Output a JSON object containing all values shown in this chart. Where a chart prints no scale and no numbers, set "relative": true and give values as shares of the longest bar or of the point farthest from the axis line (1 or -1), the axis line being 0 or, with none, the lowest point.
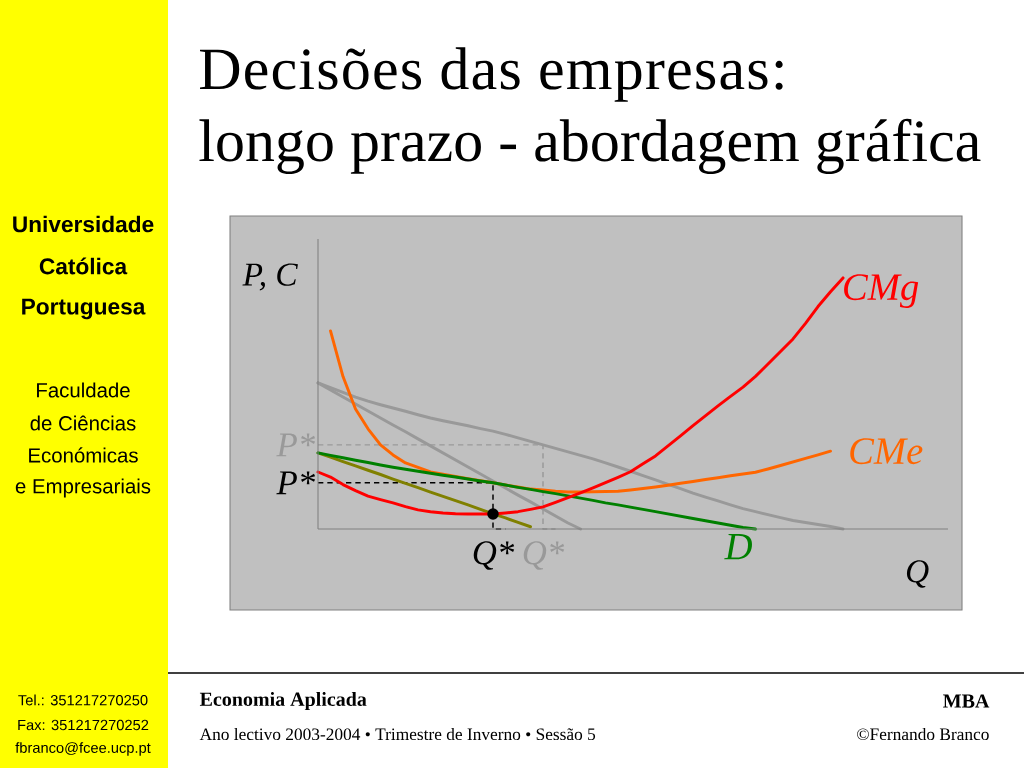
{
  "chart_data": {
    "type": "line",
    "title": "Decisões das empresas:",
    "subtitle": "longo prazo - abordagem gráfica",
    "xlabel": "Q",
    "ylabel": "P, C",
    "relative": true,
    "categories": [
      null,
      null,
      null,
      null,
      null,
      null,
      null,
      null,
      null,
      null,
      null,
      null,
      null,
      null,
      "Q*",
      null,
      null,
      null,
      "Q*",
      null,
      null,
      null,
      null,
      null,
      null,
      null,
      null,
      null,
      null,
      null,
      null,
      null,
      null,
      null,
      null,
      null,
      null,
      null,
      null,
      null,
      null,
      null,
      null
    ],
    "series": [
      {
        "color": "#999999",
        "values": [
          0.582,
          0.563,
          0.544,
          0.525,
          0.509,
          0.495,
          0.482,
          0.469,
          0.455,
          0.442,
          0.431,
          0.421,
          0.411,
          0.4,
          0.39,
          0.377,
          0.363,
          0.349,
          0.335,
          0.321,
          0.307,
          0.293,
          0.279,
          0.263,
          0.247,
          0.23,
          0.213,
          0.196,
          0.178,
          0.161,
          0.143,
          0.127,
          0.112,
          0.096,
          0.081,
          0.069,
          0.057,
          0.045,
          0.034,
          0.026,
          0.018,
          0.01,
          0
        ]
      },
      {
        "color": "#999999",
        "values": [
          0.582,
          0.554,
          0.526,
          0.498,
          0.47,
          0.442,
          0.414,
          0.387,
          0.359,
          0.331,
          0.303,
          0.275,
          0.247,
          0.219,
          0.191,
          0.163,
          0.135,
          0.108,
          0.08,
          0.052,
          0.024,
          0,
          null,
          null,
          null,
          null,
          null,
          null,
          null,
          null,
          null,
          null,
          null,
          null,
          null,
          null,
          null,
          null,
          null,
          null,
          null,
          null,
          null
        ]
      },
      {
        "type": "step",
        "name": "P*",
        "color": "#999999",
        "line_style": "dashed",
        "values": [
          0.335,
          0.335,
          0.335,
          0.335,
          0.335,
          0.335,
          0.335,
          0.335,
          0.335,
          0.335,
          0.335,
          0.335,
          0.335,
          0.335,
          0.335,
          0.335,
          0.335,
          0.335,
          0.335,
          0,
          null,
          null,
          null,
          null,
          null,
          null,
          null,
          null,
          null,
          null,
          null,
          null,
          null,
          null,
          null,
          null,
          null,
          null,
          null,
          null,
          null,
          null,
          null
        ]
      },
      {
        "type": "step",
        "name": "P*",
        "color": "#000000",
        "line_style": "dashed",
        "values": [
          0.184,
          0.184,
          0.184,
          0.184,
          0.184,
          0.184,
          0.184,
          0.184,
          0.184,
          0.184,
          0.184,
          0.184,
          0.184,
          0.184,
          0.184,
          0,
          null,
          null,
          null,
          null,
          null,
          null,
          null,
          null,
          null,
          null,
          null,
          null,
          null,
          null,
          null,
          null,
          null,
          null,
          null,
          null,
          null,
          null,
          null,
          null,
          null,
          null,
          null
        ]
      },
      {
        "name": "CMe",
        "color": "#ff6600",
        "values": [
          null,
          0.789,
          0.607,
          0.478,
          0.399,
          0.335,
          0.295,
          0.263,
          0.245,
          0.227,
          0.218,
          0.209,
          0.2,
          0.192,
          0.184,
          0.175,
          0.167,
          0.159,
          0.155,
          0.15,
          0.147,
          0.147,
          0.148,
          0.149,
          0.15,
          0.155,
          0.161,
          0.167,
          0.174,
          0.182,
          0.189,
          0.197,
          0.204,
          0.212,
          0.219,
          0.226,
          0.239,
          0.253,
          0.267,
          0.281,
          0.295,
          0.31,
          null
        ]
      },
      {
        "color": "#808000",
        "values": [
          0.303,
          0.286,
          0.268,
          0.251,
          0.234,
          0.217,
          0.199,
          0.182,
          0.165,
          0.147,
          0.13,
          0.113,
          0.096,
          0.078,
          0.06,
          0.044,
          0.026,
          0.009,
          null,
          null,
          null,
          null,
          null,
          null,
          null,
          null,
          null,
          null,
          null,
          null,
          null,
          null,
          null,
          null,
          null,
          null,
          null,
          null,
          null,
          null,
          null,
          null,
          null
        ]
      },
      {
        "name": "D",
        "color": "#008000",
        "values": [
          0.303,
          0.293,
          0.284,
          0.274,
          0.265,
          0.255,
          0.246,
          0.238,
          0.23,
          0.222,
          0.214,
          0.207,
          0.199,
          0.191,
          0.184,
          0.175,
          0.166,
          0.158,
          0.149,
          0.141,
          0.132,
          0.123,
          0.114,
          0.104,
          0.096,
          0.087,
          0.078,
          0.069,
          0.06,
          0.051,
          0.042,
          0.033,
          0.024,
          0.015,
          0.006,
          0,
          null,
          null,
          null,
          null,
          null,
          null,
          null
        ]
      },
      {
        "name": "CMg",
        "color": "#ff0000",
        "values": [
          0.227,
          0.207,
          0.177,
          0.153,
          0.131,
          0.117,
          0.104,
          0.089,
          0.076,
          0.069,
          0.064,
          0.061,
          0.06,
          0.06,
          0.06,
          0.064,
          0.069,
          0.078,
          0.088,
          0.106,
          0.125,
          0.144,
          0.164,
          0.185,
          0.206,
          0.228,
          0.26,
          0.291,
          0.331,
          0.371,
          0.412,
          0.451,
          0.49,
          0.528,
          0.565,
          0.608,
          0.657,
          0.707,
          0.757,
          0.819,
          0.886,
          0.945,
          1
        ]
      },
      {
        "type": "scatter",
        "color": "#000000",
        "values": [
          null,
          null,
          null,
          null,
          null,
          null,
          null,
          null,
          null,
          null,
          null,
          null,
          null,
          null,
          0.06,
          null,
          null,
          null,
          null,
          null,
          null,
          null,
          null,
          null,
          null,
          null,
          null,
          null,
          null,
          null,
          null,
          null,
          null,
          null,
          null,
          null,
          null,
          null,
          null,
          null,
          null,
          null,
          null
        ]
      }
    ],
    "annotations": [
      "Universidade",
      "Católica",
      "Portuguesa",
      "Faculdade",
      "de Ciências",
      "Económicas",
      "e Empresariais",
      "Tel.: 351217270250",
      "Fax: 351217270252",
      "fbranco@fcee.ucp.pt",
      "Economia Aplicada",
      "MBA",
      "Ano lectivo 2003-2004 • Trimestre de Inverno • Sessão 5",
      "©Fernando Branco"
    ]
  }
}
